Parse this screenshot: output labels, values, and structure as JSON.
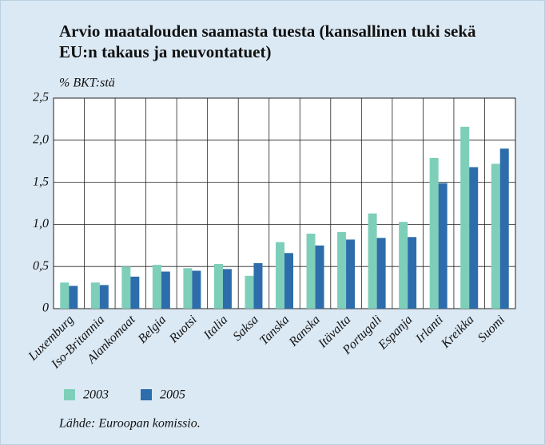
{
  "chart_data": {
    "type": "bar",
    "title": "Arvio maatalouden saamasta tuesta (kansallinen tuki sekä EU:n takaus ja neuvontatuet)",
    "y_axis_label": "% BKT:stä",
    "source": "Lähde: Euroopan komissio.",
    "categories": [
      "Luxemburg",
      "Iso-Britannia",
      "Alankomaat",
      "Belgia",
      "Ruotsi",
      "Italia",
      "Saksa",
      "Tanska",
      "Ranska",
      "Itävalta",
      "Portugali",
      "Espanja",
      "Irlanti",
      "Kreikka",
      "Suomi"
    ],
    "series": [
      {
        "name": "2003",
        "color": "#7ecfba",
        "values": [
          0.31,
          0.31,
          0.5,
          0.52,
          0.48,
          0.53,
          0.39,
          0.79,
          0.89,
          0.91,
          1.13,
          1.03,
          1.79,
          2.16,
          1.72
        ]
      },
      {
        "name": "2005",
        "color": "#2e6dab",
        "values": [
          0.27,
          0.28,
          0.38,
          0.44,
          0.45,
          0.47,
          0.54,
          0.66,
          0.75,
          0.82,
          0.84,
          0.85,
          1.49,
          1.68,
          1.9
        ]
      }
    ],
    "ylim": [
      0,
      2.5
    ],
    "yticks": [
      0,
      {
        "value": 0.5,
        "label": "0,5"
      },
      {
        "value": 1,
        "label": "1,0"
      },
      {
        "value": 1.5,
        "label": "1,5"
      },
      {
        "value": 2,
        "label": "2,0"
      },
      {
        "value": 2.5,
        "label": "2,5"
      }
    ],
    "grid": true
  }
}
